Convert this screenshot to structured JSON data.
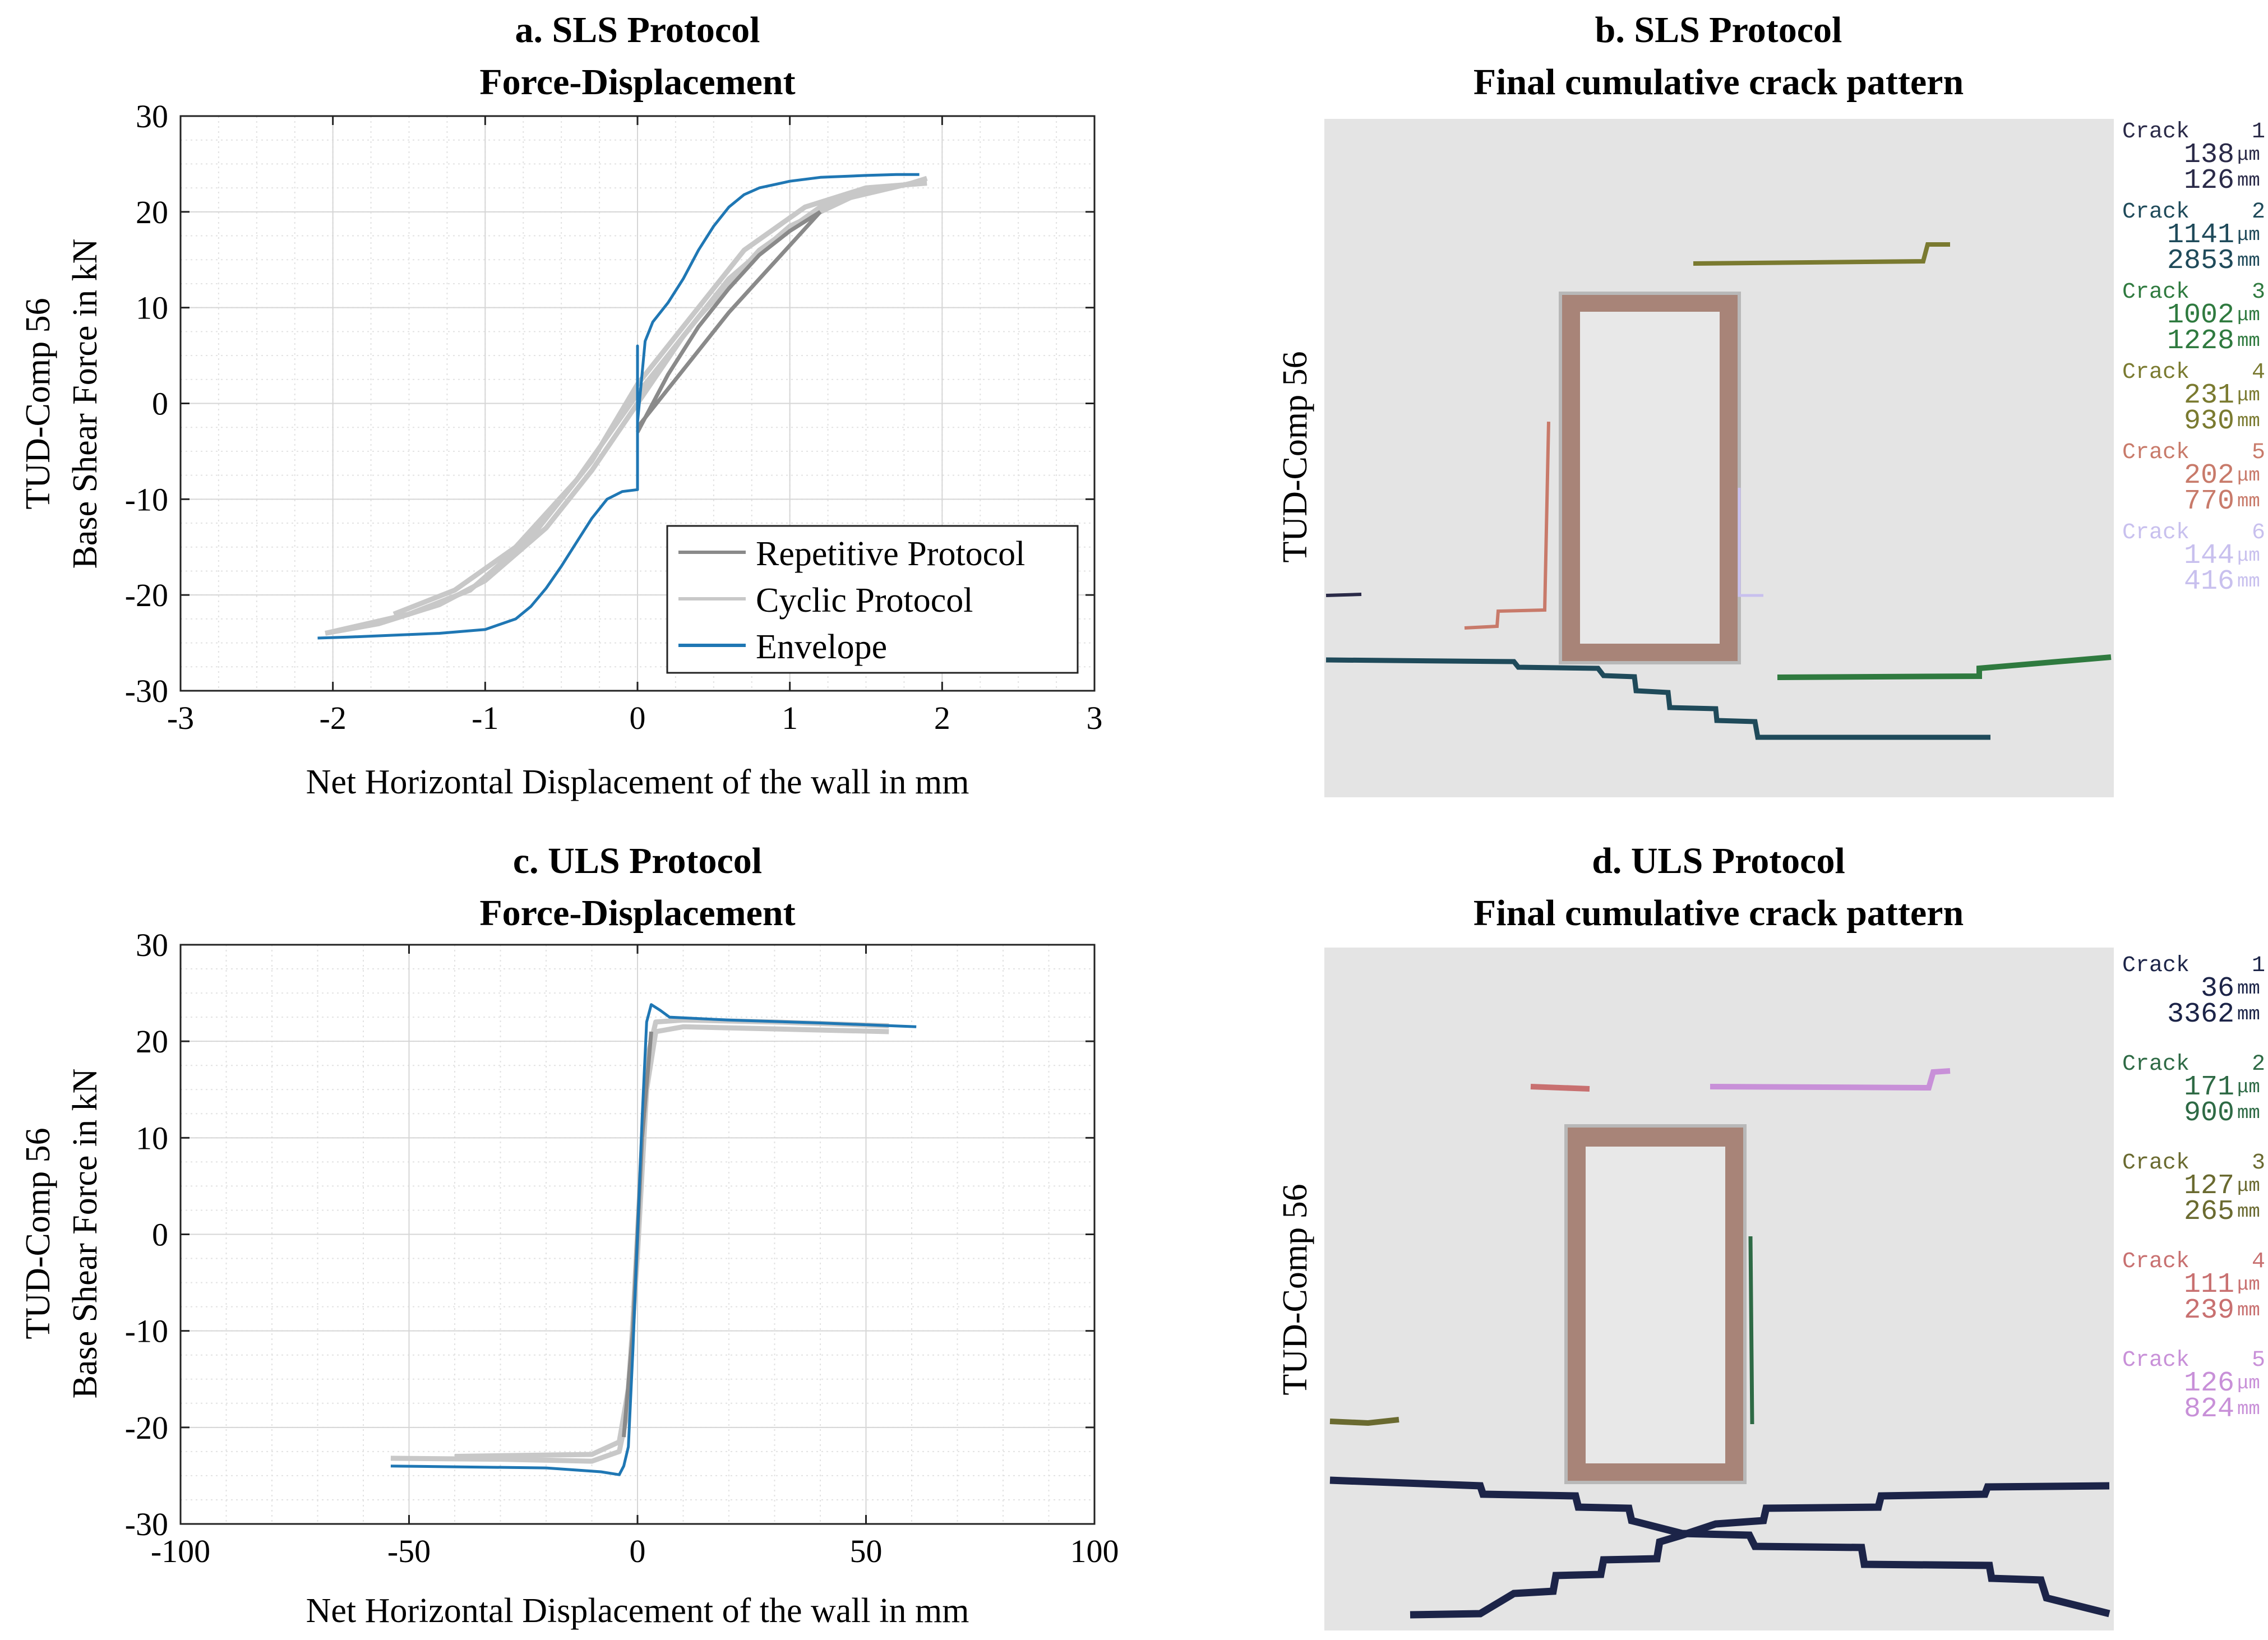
{
  "figure": {
    "panels": [
      {
        "title_line1": "a. SLS Protocol",
        "title_line2": "Force-Displacement"
      },
      {
        "title_line1": "b. SLS Protocol",
        "title_line2": "Final cumulative crack pattern"
      },
      {
        "title_line1": "c. ULS Protocol",
        "title_line2": "Force-Displacement"
      },
      {
        "title_line1": "d. ULS Protocol",
        "title_line2": "Final cumulative crack pattern"
      }
    ],
    "specimen_label": "TUD-Comp 56"
  },
  "chart_data": [
    {
      "type": "line",
      "title": "a. SLS Protocol\nForce-Displacement",
      "ylabel_line1": "TUD-Comp 56",
      "ylabel_line2": "Base Shear Force in kN",
      "xlabel": "Net Horizontal Displacement of the wall in mm",
      "xlim": [
        -3,
        3
      ],
      "ylim": [
        -30,
        30
      ],
      "xticks": [
        -3,
        -2,
        -1,
        0,
        1,
        2,
        3
      ],
      "yticks": [
        -30,
        -20,
        -10,
        0,
        10,
        20,
        30
      ],
      "grid": true,
      "legend_position": "bottom-right",
      "legend": [
        "Repetitive Protocol",
        "Cyclic Protocol",
        "Envelope"
      ],
      "colors": {
        "repetitive": "#8a8a8a",
        "cyclic": "#c8c8c8",
        "envelope": "#1f77b4"
      },
      "series": [
        {
          "name": "Envelope",
          "x": [
            -2.1,
            -1.9,
            -1.6,
            -1.3,
            -1.0,
            -0.8,
            -0.7,
            -0.6,
            -0.5,
            -0.4,
            -0.3,
            -0.2,
            -0.1,
            0.0,
            0.0,
            0.0,
            0.05,
            0.1,
            0.2,
            0.3,
            0.4,
            0.5,
            0.6,
            0.7,
            0.8,
            1.0,
            1.2,
            1.5,
            1.7,
            1.85
          ],
          "y": [
            -24.5,
            -24.4,
            -24.2,
            -24.0,
            -23.6,
            -22.5,
            -21.2,
            -19.3,
            -17.0,
            -14.5,
            -12.0,
            -10.0,
            -9.2,
            -9.0,
            6.0,
            -2.0,
            6.5,
            8.5,
            10.5,
            13.0,
            16.0,
            18.5,
            20.5,
            21.8,
            22.5,
            23.2,
            23.6,
            23.8,
            23.9,
            23.9
          ]
        },
        {
          "name": "Cyclic Protocol",
          "x": [
            -2.05,
            -1.7,
            -1.3,
            -1.0,
            -0.6,
            -0.3,
            0.0,
            0.3,
            0.6,
            1.0,
            1.4,
            1.8,
            1.9
          ],
          "y": [
            -24.0,
            -23.0,
            -21.0,
            -18.5,
            -13.0,
            -7.0,
            0.0,
            7.0,
            13.0,
            18.5,
            21.5,
            23.0,
            23.5
          ]
        },
        {
          "name": "Cyclic Protocol",
          "x": [
            1.9,
            1.5,
            1.1,
            0.7,
            0.3,
            0.0,
            -0.3,
            -0.7,
            -1.1,
            -1.5,
            -2.05
          ],
          "y": [
            23.0,
            22.5,
            20.5,
            16.0,
            8.0,
            2.0,
            -6.0,
            -14.0,
            -19.5,
            -22.0,
            -24.0
          ]
        },
        {
          "name": "Cyclic Protocol",
          "x": [
            -1.6,
            -1.2,
            -0.8,
            -0.4,
            0.0,
            0.4,
            0.8,
            1.2,
            1.6
          ],
          "y": [
            -22.0,
            -19.5,
            -15.0,
            -8.0,
            1.0,
            9.0,
            16.0,
            20.5,
            22.5
          ]
        },
        {
          "name": "Repetitive Protocol",
          "x": [
            0.0,
            0.2,
            0.4,
            0.6,
            0.8,
            1.0,
            1.2
          ],
          "y": [
            -3.0,
            3.0,
            8.0,
            12.0,
            15.5,
            18.0,
            20.0
          ]
        },
        {
          "name": "Repetitive Protocol",
          "x": [
            1.2,
            1.0,
            0.8,
            0.6,
            0.4,
            0.2,
            0.0
          ],
          "y": [
            20.0,
            16.5,
            13.0,
            9.5,
            5.5,
            1.5,
            -2.5
          ]
        }
      ]
    },
    {
      "type": "line",
      "title": "c. ULS Protocol\nForce-Displacement",
      "ylabel_line1": "TUD-Comp 56",
      "ylabel_line2": "Base Shear Force in kN",
      "xlabel": "Net Horizontal Displacement of the wall in mm",
      "xlim": [
        -100,
        100
      ],
      "ylim": [
        -30,
        30
      ],
      "xticks": [
        -100,
        -50,
        0,
        50,
        100
      ],
      "yticks": [
        -30,
        -20,
        -10,
        0,
        10,
        20,
        30
      ],
      "grid": true,
      "colors": {
        "cyclic": "#c8c8c8",
        "repetitive": "#8a8a8a",
        "envelope": "#1f77b4"
      },
      "series": [
        {
          "name": "Envelope",
          "x": [
            -54,
            -20,
            -8,
            -4,
            -3,
            -2,
            -1,
            0,
            1,
            2,
            3,
            5,
            7,
            20,
            40,
            61
          ],
          "y": [
            -24.0,
            -24.2,
            -24.6,
            -24.9,
            -24.0,
            -22.0,
            -12.0,
            0.0,
            12.0,
            22.0,
            23.8,
            23.2,
            22.5,
            22.2,
            21.9,
            21.5
          ]
        },
        {
          "name": "Cyclic Protocol",
          "x": [
            -54,
            -30,
            -10,
            -4,
            -2,
            0,
            2,
            4,
            10,
            30,
            55
          ],
          "y": [
            -23.2,
            -23.3,
            -23.5,
            -22.5,
            -18.0,
            0.0,
            18.0,
            22.0,
            22.2,
            22.0,
            21.6
          ]
        },
        {
          "name": "Cyclic Protocol",
          "x": [
            55,
            10,
            4,
            2,
            0,
            -2,
            -4,
            -10,
            -40
          ],
          "y": [
            21.0,
            21.5,
            21.0,
            15.0,
            -2.0,
            -16.0,
            -21.5,
            -22.8,
            -23.0
          ]
        },
        {
          "name": "Repetitive Protocol",
          "x": [
            -3,
            -1,
            0,
            1,
            3
          ],
          "y": [
            -21.0,
            -10.0,
            0.0,
            10.0,
            21.0
          ]
        }
      ]
    }
  ],
  "crack_panels": [
    {
      "ylabel": "TUD-Comp 56",
      "cracks": [
        {
          "label": "Crack",
          "id": "1",
          "width": "138",
          "width_unit": "μm",
          "length": "126",
          "length_unit": "mm",
          "color": "#2a2a48"
        },
        {
          "label": "Crack",
          "id": "2",
          "width": "1141",
          "width_unit": "μm",
          "length": "2853",
          "length_unit": "mm",
          "color": "#1f4a5a"
        },
        {
          "label": "Crack",
          "id": "3",
          "width": "1002",
          "width_unit": "μm",
          "length": "1228",
          "length_unit": "mm",
          "color": "#2f7a3f"
        },
        {
          "label": "Crack",
          "id": "4",
          "width": "231",
          "width_unit": "μm",
          "length": "930",
          "length_unit": "mm",
          "color": "#7a7a30"
        },
        {
          "label": "Crack",
          "id": "5",
          "width": "202",
          "width_unit": "μm",
          "length": "770",
          "length_unit": "mm",
          "color": "#c87a6a"
        },
        {
          "label": "Crack",
          "id": "6",
          "width": "144",
          "width_unit": "μm",
          "length": "416",
          "length_unit": "mm",
          "color": "#c8c0ee"
        }
      ]
    },
    {
      "ylabel": "TUD-Comp 56",
      "cracks": [
        {
          "label": "Crack",
          "id": "1",
          "width": "36",
          "width_unit": "mm",
          "length": "3362",
          "length_unit": "mm",
          "color": "#1c2448"
        },
        {
          "label": "Crack",
          "id": "2",
          "width": "171",
          "width_unit": "μm",
          "length": "900",
          "length_unit": "mm",
          "color": "#2e6a45"
        },
        {
          "label": "Crack",
          "id": "3",
          "width": "127",
          "width_unit": "μm",
          "length": "265",
          "length_unit": "mm",
          "color": "#6a6a30"
        },
        {
          "label": "Crack",
          "id": "4",
          "width": "111",
          "width_unit": "μm",
          "length": "239",
          "length_unit": "mm",
          "color": "#c87070"
        },
        {
          "label": "Crack",
          "id": "5",
          "width": "126",
          "width_unit": "μm",
          "length": "824",
          "length_unit": "mm",
          "color": "#c890d8"
        }
      ]
    }
  ]
}
